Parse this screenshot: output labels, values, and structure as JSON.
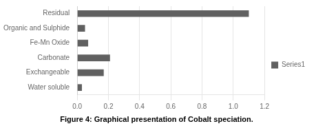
{
  "chart_data": {
    "type": "bar",
    "orientation": "horizontal",
    "title": "Figure 4: Graphical presentation of Cobalt speciation.",
    "categories": [
      "Water soluble",
      "Exchangeable",
      "Carbonate",
      "Fe-Mn Oxide",
      "Organic and Sulphide",
      "Residual"
    ],
    "series": [
      {
        "name": "Series1",
        "color": "#606060",
        "values": [
          0.03,
          0.17,
          0.21,
          0.07,
          0.05,
          1.1
        ]
      }
    ],
    "xlim": [
      0,
      1.2
    ],
    "xticks": [
      {
        "value": 0,
        "label": "0.0"
      },
      0.2,
      0.4,
      0.6,
      0.8,
      {
        "value": 1.0,
        "label": "1.0"
      },
      1.2
    ],
    "grid": true,
    "legend": "right"
  }
}
